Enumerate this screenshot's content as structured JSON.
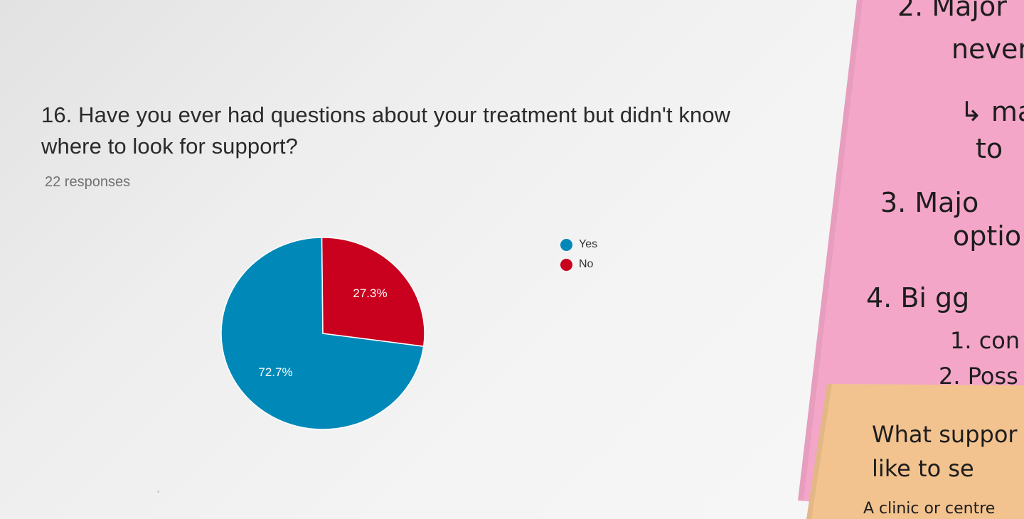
{
  "question": {
    "title": "16. Have you ever had questions about your treatment but didn't know where to look for support?",
    "responses": "22 responses"
  },
  "chart_data": {
    "type": "pie",
    "title": "16. Have you ever had questions about your treatment but didn't know where to look for support?",
    "categories": [
      "Yes",
      "No"
    ],
    "values": [
      72.7,
      27.3
    ],
    "labels": [
      "72.7%",
      "27.3%"
    ],
    "colors": [
      "#0089b8",
      "#c9001e"
    ],
    "legend_position": "right"
  },
  "legend": [
    {
      "label": "Yes",
      "color": "#0089b8"
    },
    {
      "label": "No",
      "color": "#c9001e"
    }
  ],
  "notes": {
    "pink": [
      "2. Major",
      "never",
      "↳ maj",
      "to",
      "3. Majo",
      "optio",
      "4. Bi gg",
      "1. con",
      "2. Poss"
    ],
    "orange": [
      "What suppor",
      "like to se",
      "A clinic or centre"
    ],
    "colors": {
      "pink": "#f4a6c8",
      "orange": "#f2c38f"
    }
  }
}
